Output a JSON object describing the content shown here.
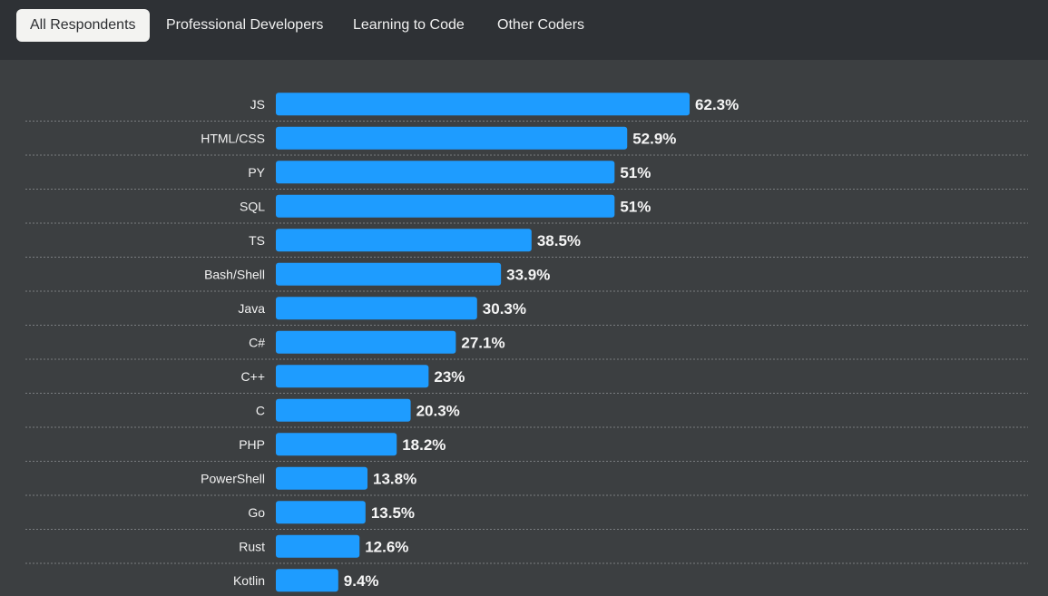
{
  "tabs": [
    {
      "label": "All Respondents",
      "active": true
    },
    {
      "label": "Professional Developers",
      "active": false
    },
    {
      "label": "Learning to Code",
      "active": false
    },
    {
      "label": "Other Coders",
      "active": false
    }
  ],
  "colors": {
    "bar": "#1e9cff",
    "background": "#3c3f41",
    "tabbar": "#2e3135"
  },
  "chart_data": {
    "type": "bar",
    "orientation": "horizontal",
    "title": "",
    "xlabel": "",
    "ylabel": "",
    "value_unit": "%",
    "categories": [
      "JS",
      "HTML/CSS",
      "PY",
      "SQL",
      "TS",
      "Bash/Shell",
      "Java",
      "C#",
      "C++",
      "C",
      "PHP",
      "PowerShell",
      "Go",
      "Rust",
      "Kotlin"
    ],
    "values": [
      62.3,
      52.9,
      51,
      51,
      38.5,
      33.9,
      30.3,
      27.1,
      23,
      20.3,
      18.2,
      13.8,
      13.5,
      12.6,
      9.4
    ],
    "value_labels": [
      "62.3%",
      "52.9%",
      "51%",
      "51%",
      "38.5%",
      "33.9%",
      "30.3%",
      "27.1%",
      "23%",
      "20.3%",
      "18.2%",
      "13.8%",
      "13.5%",
      "12.6%",
      "9.4%"
    ]
  }
}
